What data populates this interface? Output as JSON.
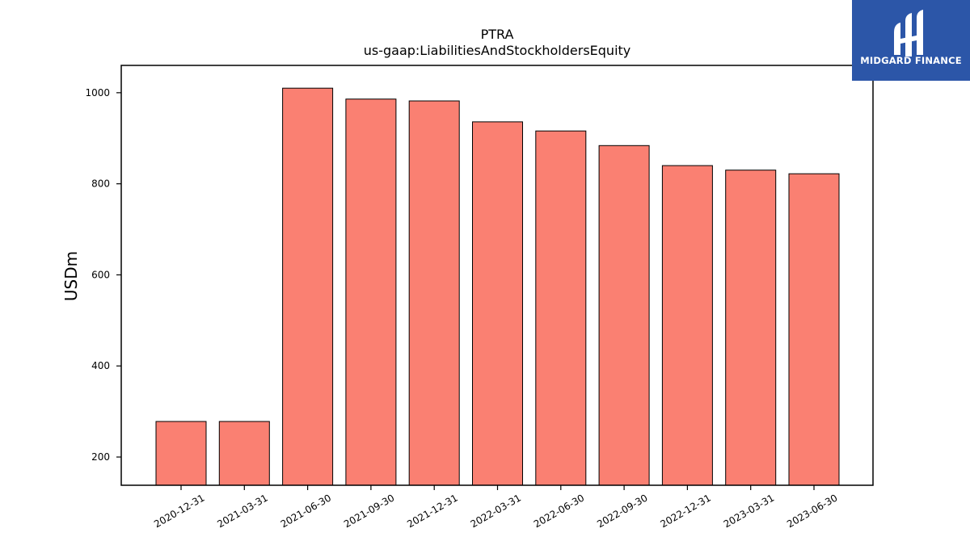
{
  "chart_data": {
    "type": "bar",
    "title": "PTRA",
    "subtitle": "us-gaap:LiabilitiesAndStockholdersEquity",
    "xlabel": "",
    "ylabel": "USDm",
    "categories": [
      "2020-12-31",
      "2021-03-31",
      "2021-06-30",
      "2021-09-30",
      "2021-12-31",
      "2022-03-31",
      "2022-06-30",
      "2022-09-30",
      "2022-12-31",
      "2023-03-31",
      "2023-06-30"
    ],
    "values": [
      278,
      278,
      1010,
      986,
      982,
      936,
      916,
      884,
      840,
      830,
      822
    ],
    "ylim": [
      138,
      1060
    ],
    "yticks": [
      200,
      400,
      600,
      800,
      1000
    ],
    "grid": false,
    "bar_color": "#fa8072",
    "edge_color": "#000000"
  },
  "logo": {
    "text": "MIDGARD FINANCE",
    "background": "#2c56a8"
  }
}
